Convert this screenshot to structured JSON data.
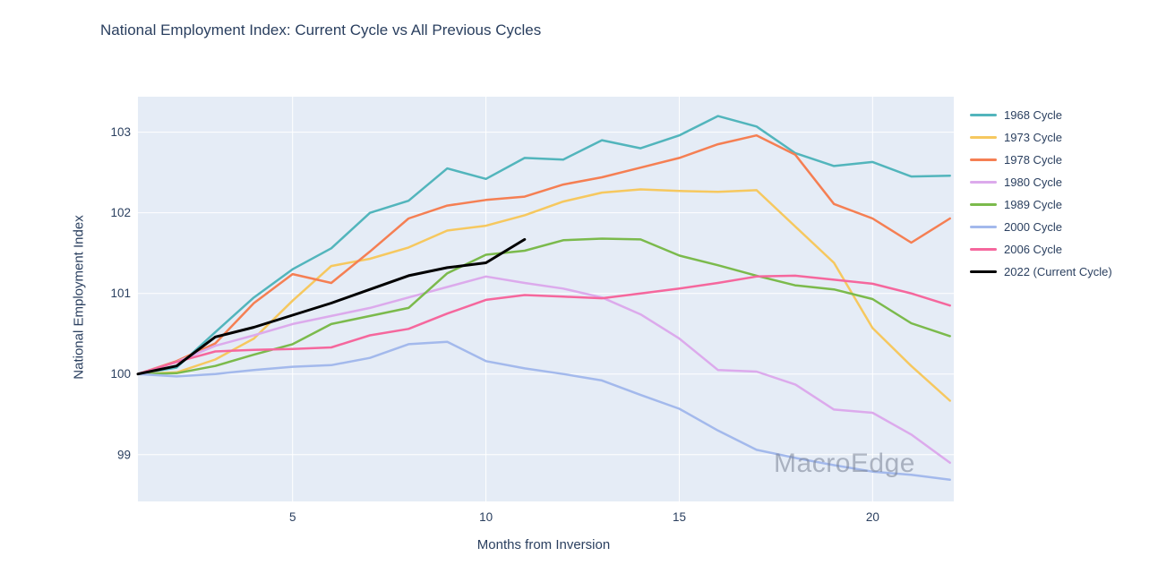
{
  "title": "National Employment Index: Current Cycle vs All Previous Cycles",
  "watermark": "MacroEdge",
  "colors": {
    "background": "#ffffff",
    "plot_background": "#e5ecf6",
    "gridline": "#ffffff",
    "text": "#2a3f5f",
    "watermark": "#7e8894"
  },
  "chart_data": {
    "type": "line",
    "title": "National Employment Index: Current Cycle vs All Previous Cycles",
    "xlabel": "Months from Inversion",
    "ylabel": "National Employment Index",
    "x": [
      1,
      2,
      3,
      4,
      5,
      6,
      7,
      8,
      9,
      10,
      11,
      12,
      13,
      14,
      15,
      16,
      17,
      18,
      19,
      20,
      21,
      22
    ],
    "xticks": [
      5,
      10,
      15,
      20
    ],
    "yticks": [
      99,
      100,
      101,
      102,
      103
    ],
    "xlim": [
      1,
      22.1
    ],
    "ylim": [
      98.42,
      103.44
    ],
    "grid": true,
    "legend_position": "right",
    "series": [
      {
        "name": "1968 Cycle",
        "color": "#52b5bc",
        "width": 2.5,
        "values": [
          100,
          100.08,
          100.52,
          100.95,
          101.3,
          101.56,
          102.0,
          102.15,
          102.55,
          102.42,
          102.68,
          102.66,
          102.9,
          102.8,
          102.96,
          103.2,
          103.07,
          102.74,
          102.58,
          102.63,
          102.45,
          102.46
        ]
      },
      {
        "name": "1973 Cycle",
        "color": "#f6c85f",
        "width": 2.5,
        "values": [
          100,
          100.02,
          100.18,
          100.44,
          100.91,
          101.34,
          101.43,
          101.57,
          101.78,
          101.84,
          101.97,
          102.14,
          102.25,
          102.29,
          102.27,
          102.26,
          102.28,
          101.83,
          101.38,
          100.57,
          100.1,
          99.67
        ]
      },
      {
        "name": "1978 Cycle",
        "color": "#f57f53",
        "width": 2.5,
        "values": [
          100,
          100.16,
          100.38,
          100.88,
          101.24,
          101.13,
          101.52,
          101.93,
          102.09,
          102.16,
          102.2,
          102.35,
          102.44,
          102.56,
          102.68,
          102.85,
          102.96,
          102.72,
          102.11,
          101.93,
          101.63,
          101.93
        ]
      },
      {
        "name": "1980 Cycle",
        "color": "#dcaaec",
        "width": 2.5,
        "values": [
          100,
          100.15,
          100.35,
          100.48,
          100.62,
          100.72,
          100.82,
          100.95,
          101.08,
          101.21,
          101.13,
          101.06,
          100.95,
          100.74,
          100.44,
          100.05,
          100.03,
          99.87,
          99.56,
          99.52,
          99.25,
          98.9
        ]
      },
      {
        "name": "1989 Cycle",
        "color": "#7bba4c",
        "width": 2.5,
        "values": [
          100,
          100.01,
          100.1,
          100.24,
          100.37,
          100.62,
          100.72,
          100.82,
          101.25,
          101.48,
          101.53,
          101.66,
          101.68,
          101.67,
          101.47,
          101.35,
          101.22,
          101.1,
          101.05,
          100.93,
          100.63,
          100.47
        ]
      },
      {
        "name": "2000 Cycle",
        "color": "#a3b9ec",
        "width": 2.5,
        "values": [
          100,
          99.97,
          100.0,
          100.05,
          100.09,
          100.11,
          100.2,
          100.37,
          100.4,
          100.16,
          100.07,
          100.0,
          99.92,
          99.74,
          99.57,
          99.3,
          99.06,
          98.96,
          98.87,
          98.79,
          98.75,
          98.69
        ]
      },
      {
        "name": "2006 Cycle",
        "color": "#f5679d",
        "width": 2.5,
        "values": [
          100,
          100.15,
          100.28,
          100.3,
          100.31,
          100.33,
          100.48,
          100.56,
          100.75,
          100.92,
          100.98,
          100.96,
          100.94,
          101.0,
          101.06,
          101.13,
          101.21,
          101.22,
          101.17,
          101.12,
          101.0,
          100.85
        ]
      },
      {
        "name": "2022 (Current Cycle)",
        "color": "#000000",
        "width": 3,
        "values": [
          100,
          100.1,
          100.46,
          100.58,
          100.73,
          100.88,
          101.05,
          101.22,
          101.32,
          101.38,
          101.67
        ]
      }
    ]
  }
}
